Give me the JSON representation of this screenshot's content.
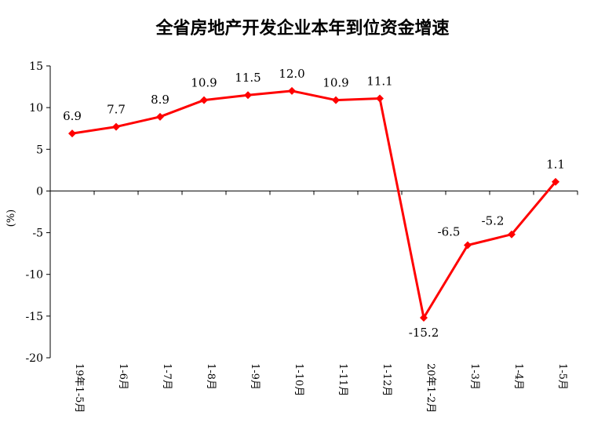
{
  "chart_data": {
    "type": "line",
    "title": "全省房地产开发企业本年到位资金增速",
    "ylabel": "(%)",
    "xlabel": "",
    "categories": [
      "19年1-5月",
      "1-6月",
      "1-7月",
      "1-8月",
      "1-9月",
      "1-10月",
      "1-11月",
      "1-12月",
      "20年1-2月",
      "1-3月",
      "1-4月",
      "1-5月"
    ],
    "values": [
      6.9,
      7.7,
      8.9,
      10.9,
      11.5,
      12.0,
      10.9,
      11.1,
      -15.2,
      -6.5,
      -5.2,
      1.1
    ],
    "value_labels": [
      "6.9",
      "7.7",
      "8.9",
      "10.9",
      "11.5",
      "12.0",
      "10.9",
      "11.1",
      "-15.2",
      "-6.5",
      "-5.2",
      "1.1"
    ],
    "ylim": [
      -20,
      15
    ],
    "yticks": [
      "-20",
      "-15",
      "-10",
      "-5",
      "0",
      "5",
      "10",
      "15"
    ],
    "grid": false,
    "legend": "none",
    "line_color": "#ff0000",
    "marker": "diamond"
  }
}
